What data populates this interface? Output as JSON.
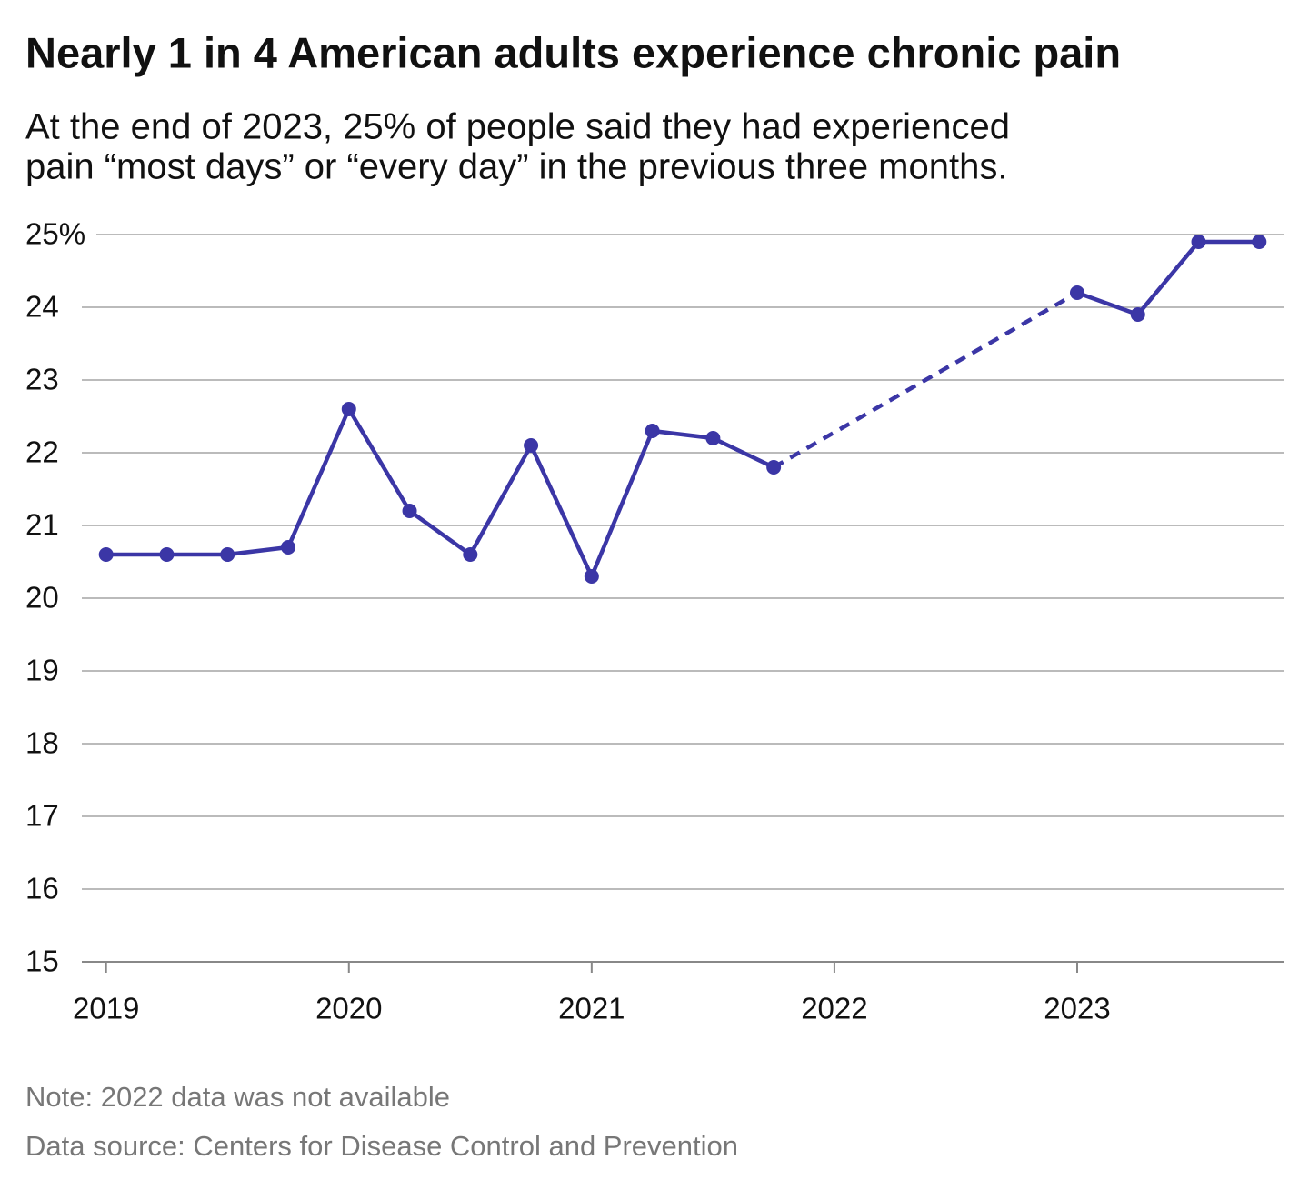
{
  "chart_data": {
    "type": "line",
    "title": "Nearly 1 in 4 American adults experience chronic pain",
    "subtitle": [
      "At the end of 2023, 25% of people said they had experienced",
      "pain “most days” or “every day” in the previous three months."
    ],
    "x": [
      2019,
      2019.25,
      2019.5,
      2019.75,
      2020,
      2020.25,
      2020.5,
      2020.75,
      2021,
      2021.25,
      2021.5,
      2021.75,
      2023,
      2023.25,
      2023.5,
      2023.75
    ],
    "values": [
      20.6,
      20.6,
      20.6,
      20.7,
      22.6,
      21.2,
      20.6,
      22.1,
      20.3,
      22.3,
      22.2,
      21.8,
      24.2,
      23.9,
      24.9,
      24.9
    ],
    "color": "#3b36a6",
    "xlim": [
      2018.9,
      2023.85
    ],
    "xticks": [
      2019,
      2020,
      2021,
      2022,
      2023
    ],
    "ylim": [
      15,
      25
    ],
    "yticks": [
      15,
      16,
      17,
      18,
      19,
      20,
      21,
      22,
      23,
      24,
      {
        "value": 25,
        "label": "25%"
      }
    ],
    "grid": true,
    "notes": [
      "Note: 2022 data was not available",
      "Data source: Centers for Disease Control and Prevention"
    ]
  }
}
